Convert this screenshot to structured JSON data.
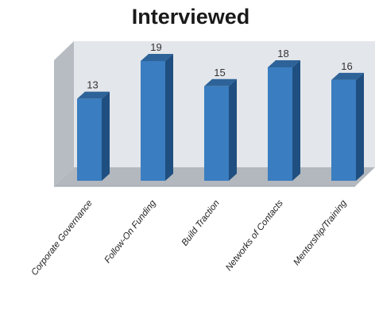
{
  "chart_data": {
    "type": "bar",
    "title": "Interviewed",
    "categories": [
      "Corporate Governance",
      "Follow-On Funding",
      "Build Traction",
      "Networks of Contacts",
      "Mentorship/Training"
    ],
    "values": [
      13,
      19,
      15,
      18,
      16
    ],
    "xlabel": "",
    "ylabel": "",
    "ylim": [
      0,
      20
    ],
    "grid": false,
    "legend": "none",
    "style": "3d-column",
    "colors": {
      "bar_front": "#3a7dc0",
      "bar_side": "#1f4f80",
      "bar_top": "#2d6399",
      "back_wall": "#e3e6ea",
      "side_wall": "#b7bcc2",
      "floor": "#b2b8be"
    }
  }
}
